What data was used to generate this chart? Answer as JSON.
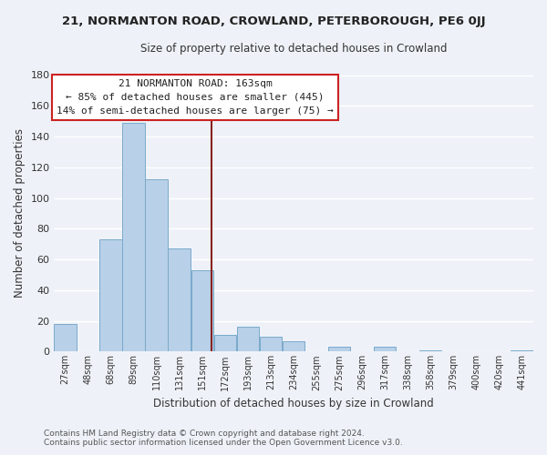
{
  "title": "21, NORMANTON ROAD, CROWLAND, PETERBOROUGH, PE6 0JJ",
  "subtitle": "Size of property relative to detached houses in Crowland",
  "xlabel": "Distribution of detached houses by size in Crowland",
  "ylabel": "Number of detached properties",
  "bar_color": "#b8d0e8",
  "bar_edge_color": "#7aaaca",
  "background_color": "#eef2f8",
  "grid_color": "#ffffff",
  "categories": [
    "27sqm",
    "48sqm",
    "68sqm",
    "89sqm",
    "110sqm",
    "131sqm",
    "151sqm",
    "172sqm",
    "193sqm",
    "213sqm",
    "234sqm",
    "255sqm",
    "275sqm",
    "296sqm",
    "317sqm",
    "338sqm",
    "358sqm",
    "379sqm",
    "400sqm",
    "420sqm",
    "441sqm"
  ],
  "values": [
    18,
    0,
    73,
    149,
    112,
    67,
    53,
    11,
    16,
    10,
    7,
    0,
    3,
    0,
    3,
    0,
    1,
    0,
    0,
    0,
    1
  ],
  "ylim": [
    0,
    180
  ],
  "yticks": [
    0,
    20,
    40,
    60,
    80,
    100,
    120,
    140,
    160,
    180
  ],
  "annotation_title": "21 NORMANTON ROAD: 163sqm",
  "annotation_line1": "← 85% of detached houses are smaller (445)",
  "annotation_line2": "14% of semi-detached houses are larger (75) →",
  "annotation_box_facecolor": "#ffffff",
  "annotation_box_edgecolor": "#cc2222",
  "marker_line_color": "#882222",
  "footnote1": "Contains HM Land Registry data © Crown copyright and database right 2024.",
  "footnote2": "Contains public sector information licensed under the Open Government Licence v3.0."
}
